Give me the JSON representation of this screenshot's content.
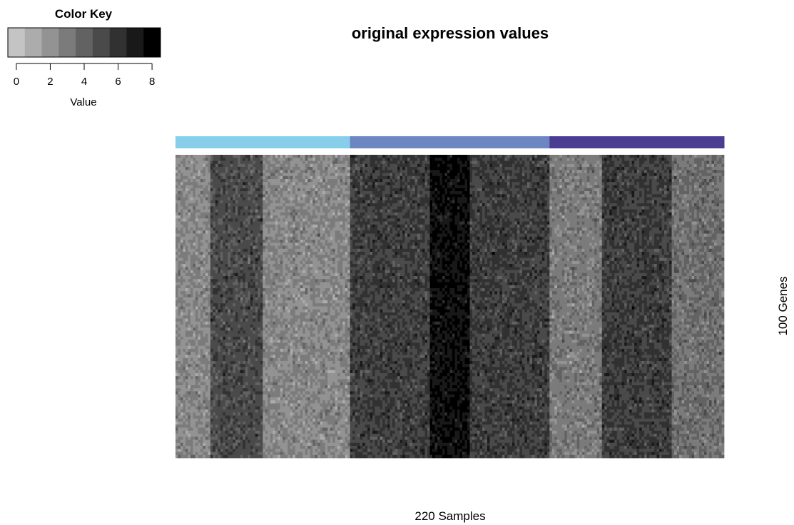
{
  "chart_data": {
    "type": "heatmap",
    "title": "original expression values",
    "xlabel": "220 Samples",
    "ylabel": "100 Genes",
    "n_samples": 220,
    "n_genes": 100,
    "color_key": {
      "title": "Color Key",
      "label": "Value",
      "ticks": [
        "0",
        "2",
        "4",
        "6",
        "8"
      ],
      "tick_values": [
        0,
        2,
        4,
        6,
        8
      ],
      "range": [
        -0.5,
        8.5
      ],
      "bins": 9,
      "low_color": "#c4c4c4",
      "high_color": "#000000"
    },
    "sample_groups": [
      {
        "samples": 70,
        "color": "#87ceeb"
      },
      {
        "samples": 80,
        "color": "#6b86c0"
      },
      {
        "samples": 70,
        "color": "#4b3d92"
      }
    ],
    "column_blocks": [
      {
        "samples": 14,
        "mean_value": 2.5
      },
      {
        "samples": 21,
        "mean_value": 5.0
      },
      {
        "samples": 35,
        "mean_value": 2.5
      },
      {
        "samples": 32,
        "mean_value": 5.5
      },
      {
        "samples": 16,
        "mean_value": 7.5
      },
      {
        "samples": 32,
        "mean_value": 5.5
      },
      {
        "samples": 21,
        "mean_value": 3.0
      },
      {
        "samples": 28,
        "mean_value": 5.5
      },
      {
        "samples": 21,
        "mean_value": 3.5
      }
    ],
    "noise_sd": 0.6
  }
}
